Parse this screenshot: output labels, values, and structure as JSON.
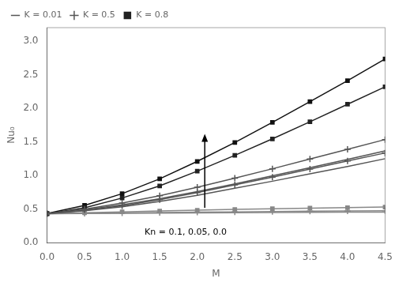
{
  "chart_data": {
    "type": "line",
    "xlabel": "M",
    "ylabel": "Nu₀",
    "x": [
      0,
      0.5,
      1.0,
      1.5,
      2.0,
      2.5,
      3.0,
      3.5,
      4.0,
      4.5
    ],
    "xlim": [
      0,
      4.5
    ],
    "ylim": [
      0,
      3.2
    ],
    "xticks": [
      {
        "value": 0,
        "label": "0.0"
      },
      {
        "value": 0.5,
        "label": "0.5"
      },
      {
        "value": 1,
        "label": "1.0"
      },
      {
        "value": 1.5,
        "label": "1.5"
      },
      {
        "value": 2,
        "label": "2.0"
      },
      {
        "value": 2.5,
        "label": "2.5"
      },
      {
        "value": 3,
        "label": "3.0"
      },
      {
        "value": 3.5,
        "label": "3.5"
      },
      {
        "value": 4,
        "label": "4.0"
      },
      {
        "value": 4.5,
        "label": "4.5"
      }
    ],
    "yticks": [
      {
        "value": 0,
        "label": "0.0"
      },
      {
        "value": 0.5,
        "label": "0.5"
      },
      {
        "value": 1,
        "label": "1.0"
      },
      {
        "value": 1.5,
        "label": "1.5"
      },
      {
        "value": 2,
        "label": "2.0"
      },
      {
        "value": 2.5,
        "label": "2.5"
      },
      {
        "value": 3,
        "label": "3.0"
      }
    ],
    "grid": false,
    "legend": "upper left",
    "series": [
      {
        "name": "K = 0.01",
        "marker": "none",
        "color": "#555555",
        "values": [
          0.43,
          0.475,
          0.535,
          0.615,
          0.705,
          0.81,
          0.915,
          1.025,
          1.135,
          1.25
        ]
      },
      {
        "name": "K = 0.01",
        "marker": "none",
        "color": "#555555",
        "values": [
          0.43,
          0.49,
          0.565,
          0.655,
          0.76,
          0.875,
          0.995,
          1.115,
          1.24,
          1.365
        ]
      },
      {
        "name": "K = 0.01",
        "marker": "none",
        "color": "#888888",
        "values": [
          0.43,
          0.433,
          0.436,
          0.44,
          0.443,
          0.446,
          0.449,
          0.452,
          0.454,
          0.456
        ]
      },
      {
        "name": "K = 0.5",
        "marker": "plus",
        "color": "#555555",
        "values": [
          0.43,
          0.48,
          0.55,
          0.64,
          0.745,
          0.86,
          0.975,
          1.095,
          1.215,
          1.335
        ]
      },
      {
        "name": "K = 0.5",
        "marker": "plus",
        "color": "#555555",
        "values": [
          0.435,
          0.5,
          0.59,
          0.7,
          0.825,
          0.96,
          1.1,
          1.245,
          1.39,
          1.535
        ]
      },
      {
        "name": "K = 0.5",
        "marker": "plus",
        "color": "#888888",
        "values": [
          0.43,
          0.436,
          0.442,
          0.448,
          0.454,
          0.459,
          0.464,
          0.469,
          0.473,
          0.477
        ]
      },
      {
        "name": "K = 0.8",
        "marker": "square",
        "color": "#222222",
        "values": [
          0.43,
          0.52,
          0.665,
          0.845,
          1.065,
          1.3,
          1.545,
          1.8,
          2.06,
          2.32
        ]
      },
      {
        "name": "K = 0.8",
        "marker": "square",
        "color": "#111111",
        "values": [
          0.435,
          0.555,
          0.73,
          0.95,
          1.21,
          1.49,
          1.79,
          2.1,
          2.41,
          2.735
        ]
      },
      {
        "name": "K = 0.8",
        "marker": "square",
        "color": "#888888",
        "values": [
          0.43,
          0.445,
          0.458,
          0.472,
          0.484,
          0.495,
          0.505,
          0.514,
          0.522,
          0.53
        ]
      }
    ],
    "annotations": [
      {
        "text": "Kn = 0.1, 0.05, 0.0",
        "x": 1.3,
        "y": 0.12
      }
    ],
    "arrows": [
      {
        "x": 2.1,
        "y_start": 0.52,
        "y_end": 1.62
      }
    ]
  }
}
